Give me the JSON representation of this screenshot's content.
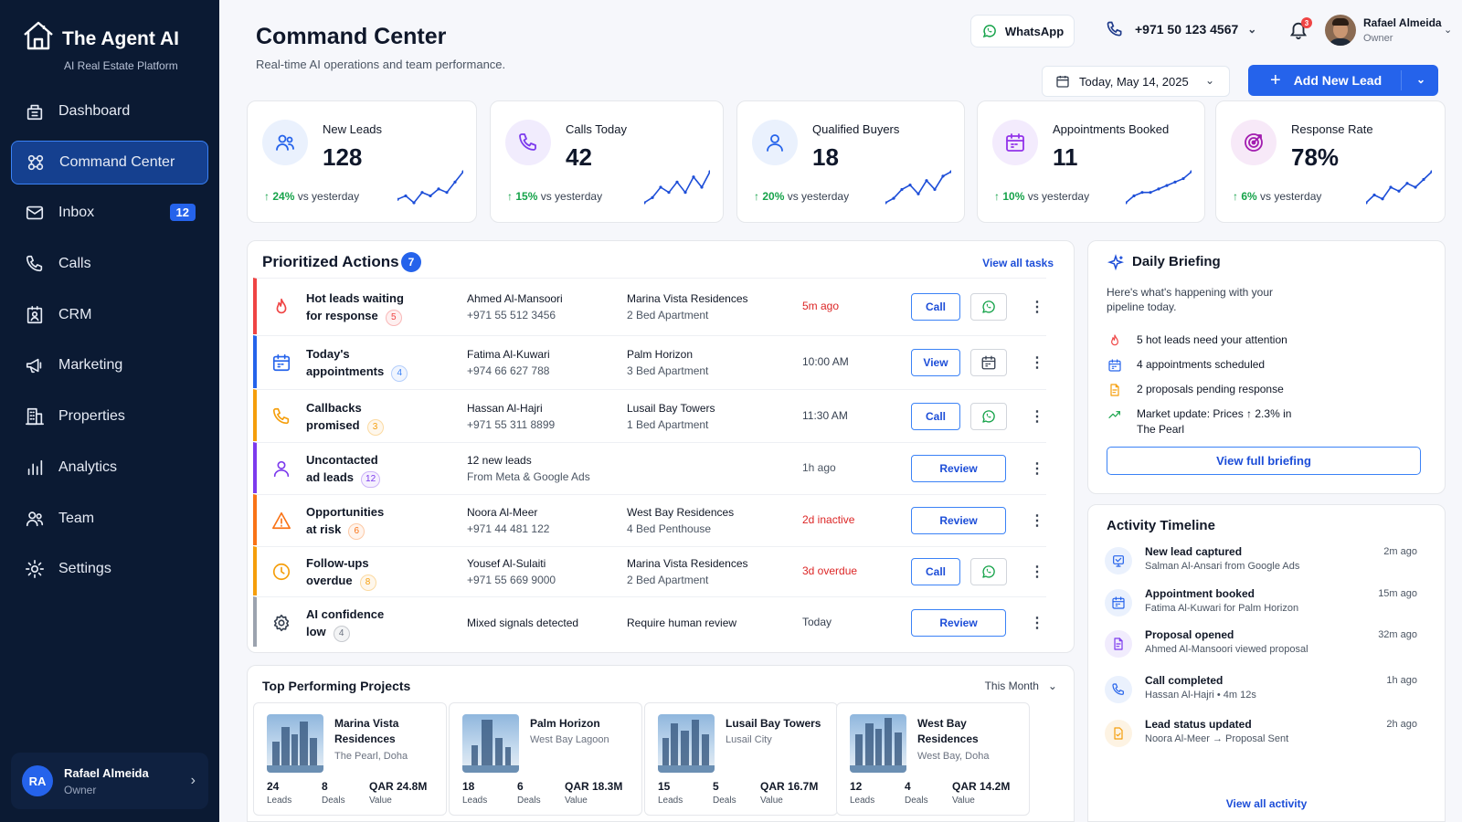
{
  "brand": {
    "title": "The Agent AI",
    "subtitle": "AI Real Estate Platform"
  },
  "sidebar": {
    "items": [
      {
        "label": "Dashboard",
        "icon": "dashboard-icon"
      },
      {
        "label": "Command Center",
        "icon": "command-icon",
        "active": true
      },
      {
        "label": "Inbox",
        "icon": "inbox-icon",
        "badge": "12"
      },
      {
        "label": "Calls",
        "icon": "phone-icon"
      },
      {
        "label": "CRM",
        "icon": "crm-icon"
      },
      {
        "label": "Marketing",
        "icon": "megaphone-icon"
      },
      {
        "label": "Properties",
        "icon": "building-icon"
      },
      {
        "label": "Analytics",
        "icon": "bar-chart-icon"
      },
      {
        "label": "Team",
        "icon": "team-icon"
      },
      {
        "label": "Settings",
        "icon": "gear-icon"
      }
    ],
    "user": {
      "initials": "RA",
      "name": "Rafael Almeida",
      "role": "Owner"
    }
  },
  "header": {
    "title": "Command Center",
    "subtitle": "Real-time AI operations and team performance.",
    "whatsapp_label": "WhatsApp",
    "phone": "+971 50 123 4567",
    "notifications": "3",
    "user_name": "Rafael Almeida",
    "user_role": "Owner",
    "date": "Today, May 14, 2025",
    "add_lead_label": "Add New Lead"
  },
  "kpis": [
    {
      "label": "New Leads",
      "value": "128",
      "change": "24%",
      "suffix": "vs yesterday",
      "icon": "users-icon",
      "color": "#2563eb",
      "bg": "#eaf1fd",
      "spark": [
        4,
        5,
        3,
        6,
        5,
        7,
        6,
        9,
        12
      ]
    },
    {
      "label": "Calls Today",
      "value": "42",
      "change": "15%",
      "suffix": "vs yesterday",
      "icon": "phone-icon",
      "color": "#7c3aed",
      "bg": "#f1ecfd",
      "spark": [
        3,
        4,
        6,
        5,
        7,
        5,
        8,
        6,
        9
      ]
    },
    {
      "label": "Qualified Buyers",
      "value": "18",
      "change": "20%",
      "suffix": "vs yesterday",
      "icon": "user-icon",
      "color": "#2563eb",
      "bg": "#eaf1fd",
      "spark": [
        3,
        4,
        6,
        7,
        5,
        8,
        6,
        9,
        10
      ]
    },
    {
      "label": "Appointments Booked",
      "value": "11",
      "change": "10%",
      "suffix": "vs yesterday",
      "icon": "calendar-icon",
      "color": "#9333ea",
      "bg": "#f3ebfd",
      "spark": [
        3,
        5,
        6,
        6,
        7,
        8,
        9,
        10,
        12
      ]
    },
    {
      "label": "Response Rate",
      "value": "78%",
      "change": "6%",
      "suffix": "vs yesterday",
      "icon": "target-icon",
      "color": "#a21caf",
      "bg": "#f7e9f8",
      "spark": [
        3,
        5,
        4,
        7,
        6,
        8,
        7,
        9,
        11
      ]
    }
  ],
  "actions": {
    "title": "Prioritized Actions",
    "count": "7",
    "view_all": "View all tasks",
    "rows": [
      {
        "cat1": "Hot leads waiting",
        "cat2": "for response",
        "badge": "5",
        "color": "#ef4444",
        "badge_color": "#ef4444",
        "icon": "fire-icon",
        "c1": "Ahmed Al-Mansoori",
        "c1sub": "+971 55 512 3456",
        "c2": "Marina Vista Residences",
        "c2sub": "2 Bed Apartment",
        "time": "5m ago",
        "time_color": "#dc2626",
        "btn": "Call",
        "sq": "whatsapp"
      },
      {
        "cat1": "Today's",
        "cat2": "appointments",
        "badge": "4",
        "color": "#2563eb",
        "badge_color": "#3b82f6",
        "icon": "calendar-icon",
        "c1": "Fatima Al-Kuwari",
        "c1sub": "+974 66 627 788",
        "c2": "Palm Horizon",
        "c2sub": "3 Bed Apartment",
        "time": "10:00 AM",
        "time_color": "#374151",
        "btn": "View",
        "sq": "calendar"
      },
      {
        "cat1": "Callbacks",
        "cat2": "promised",
        "badge": "3",
        "color": "#f59e0b",
        "badge_color": "#f59e0b",
        "icon": "phone-icon",
        "c1": "Hassan Al-Hajri",
        "c1sub": "+971 55 311 8899",
        "c2": "Lusail Bay Towers",
        "c2sub": "1 Bed Apartment",
        "time": "11:30 AM",
        "time_color": "#374151",
        "btn": "Call",
        "sq": "whatsapp"
      },
      {
        "cat1": "Uncontacted",
        "cat2": "ad leads",
        "badge": "12",
        "color": "#7c3aed",
        "badge_color": "#7c3aed",
        "icon": "user-icon",
        "c1": "12 new leads",
        "c1sub": "From Meta & Google Ads",
        "c2": "",
        "c2sub": "",
        "time": "1h ago",
        "time_color": "#4b5563",
        "btn": "Review",
        "sq": ""
      },
      {
        "cat1": "Opportunities",
        "cat2": "at risk",
        "badge": "6",
        "color": "#f97316",
        "badge_color": "#f97316",
        "icon": "warning-icon",
        "c1": "Noora Al-Meer",
        "c1sub": "+971 44 481 122",
        "c2": "West Bay Residences",
        "c2sub": "4 Bed Penthouse",
        "time": "2d inactive",
        "time_color": "#dc2626",
        "btn": "Review",
        "sq": ""
      },
      {
        "cat1": "Follow-ups",
        "cat2": "overdue",
        "badge": "8",
        "color": "#f59e0b",
        "badge_color": "#f59e0b",
        "icon": "clock-icon",
        "c1": "Yousef Al-Sulaiti",
        "c1sub": "+971 55 669 9000",
        "c2": "Marina Vista Residences",
        "c2sub": "2 Bed Apartment",
        "time": "3d overdue",
        "time_color": "#dc2626",
        "btn": "Call",
        "sq": "whatsapp"
      },
      {
        "cat1": "AI confidence",
        "cat2": "low",
        "badge": "4",
        "color": "#9ca3af",
        "badge_color": "#6b7280",
        "icon": "ai-gear-icon",
        "c1": "Mixed signals detected",
        "c1sub": "",
        "c2": "Require human review",
        "c2sub": "",
        "time": "Today",
        "time_color": "#374151",
        "btn": "Review",
        "sq": ""
      }
    ]
  },
  "projects": {
    "title": "Top Performing Projects",
    "filter": "This Month",
    "items": [
      {
        "name": "Marina Vista Residences",
        "loc": "The Pearl, Doha",
        "leads": "24",
        "deals": "8",
        "value": "QAR 24.8M"
      },
      {
        "name": "Palm Horizon",
        "loc": "West Bay Lagoon",
        "leads": "18",
        "deals": "6",
        "value": "QAR 18.3M"
      },
      {
        "name": "Lusail Bay Towers",
        "loc": "Lusail City",
        "leads": "15",
        "deals": "5",
        "value": "QAR 16.7M"
      },
      {
        "name": "West Bay Residences",
        "loc": "West Bay, Doha",
        "leads": "12",
        "deals": "4",
        "value": "QAR 14.2M"
      }
    ],
    "leads_label": "Leads",
    "deals_label": "Deals",
    "value_label": "Value"
  },
  "briefing": {
    "title": "Daily Briefing",
    "intro": "Here's what's happening with your pipeline today.",
    "items": [
      {
        "text": "5 hot leads need your attention",
        "icon": "fire-icon"
      },
      {
        "text": "4 appointments scheduled",
        "icon": "calendar-icon"
      },
      {
        "text": "2 proposals pending response",
        "icon": "document-icon"
      },
      {
        "text": "Market update: Prices ↑ 2.3% in The Pearl",
        "icon": "trend-up-icon"
      }
    ],
    "button": "View full briefing"
  },
  "timeline": {
    "title": "Activity Timeline",
    "items": [
      {
        "title": "New lead captured",
        "desc": "Salman Al-Ansari from Google Ads",
        "time": "2m ago",
        "icon": "lead-icon"
      },
      {
        "title": "Appointment booked",
        "desc": "Fatima Al-Kuwari for Palm Horizon",
        "time": "15m ago",
        "icon": "calendar-icon"
      },
      {
        "title": "Proposal opened",
        "desc": "Ahmed Al-Mansoori viewed proposal",
        "time": "32m ago",
        "icon": "document-icon"
      },
      {
        "title": "Call completed",
        "desc": "Hassan Al-Hajri • 4m 12s",
        "time": "1h ago",
        "icon": "phone-icon"
      },
      {
        "title": "Lead status updated",
        "desc": "Noora Al-Meer → Proposal Sent",
        "time": "2h ago",
        "icon": "status-icon"
      }
    ],
    "view_all": "View all activity"
  }
}
